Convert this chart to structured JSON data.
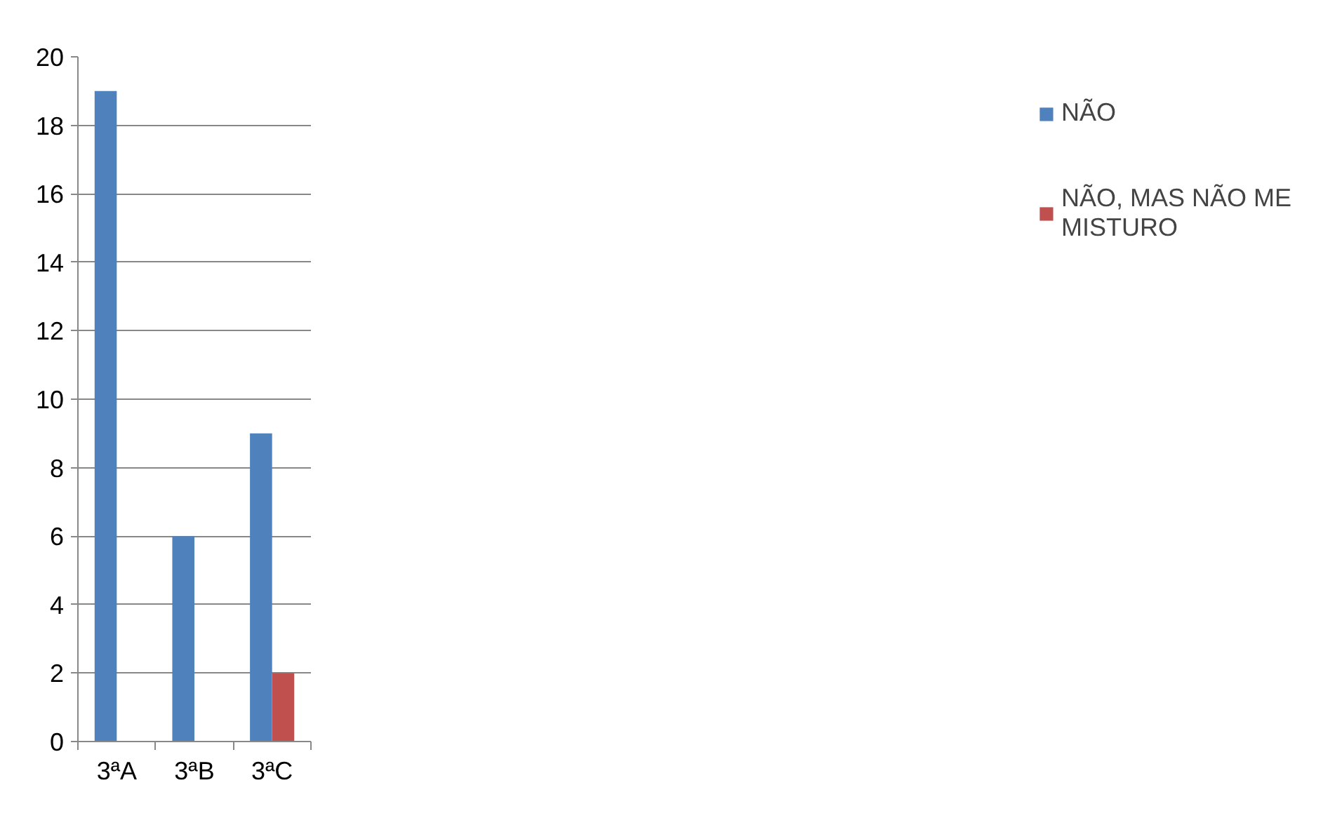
{
  "chart_data": {
    "type": "bar",
    "categories": [
      "3ªA",
      "3ªB",
      "3ªC"
    ],
    "series": [
      {
        "name": "NÃO",
        "color": "#4f81bd",
        "values": [
          19,
          6,
          9
        ]
      },
      {
        "name": "NÃO, MAS NÃO ME MISTURO",
        "color": "#c0504d",
        "values": [
          0,
          0,
          2
        ]
      }
    ],
    "ylim": [
      0,
      20
    ],
    "yticks": [
      0,
      2,
      4,
      6,
      8,
      10,
      12,
      14,
      16,
      18,
      20
    ],
    "grid": "y",
    "legend": "right"
  }
}
